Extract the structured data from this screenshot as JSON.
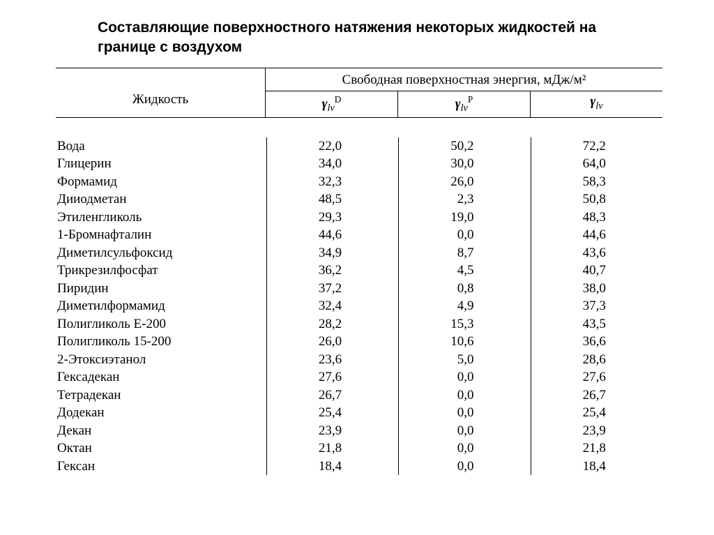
{
  "title": "Составляющие поверхностного натяжения некоторых жидкостей на границе с воздухом",
  "header": {
    "liquid_label": "Жидкость",
    "energy_label": "Свободная поверхностная энергия, мДж/м²",
    "col_gamma_d": "γ_lv^D",
    "col_gamma_p": "γ_lv^P",
    "col_gamma": "γ_lv"
  },
  "table": {
    "type": "table",
    "columns": [
      "Жидкость",
      "γ_lv^D",
      "γ_lv^P",
      "γ_lv"
    ],
    "col_align": [
      "left",
      "right",
      "right",
      "right"
    ],
    "font_family": "Times New Roman",
    "body_fontsize": 19,
    "title_fontsize": 21,
    "text_color": "#000000",
    "rule_color": "#000000",
    "background_color": "#ffffff",
    "rule_width": 1.5,
    "rows": [
      {
        "name": "Вода",
        "d": "22,0",
        "p": "50,2",
        "t": "72,2"
      },
      {
        "name": "Глицерин",
        "d": "34,0",
        "p": "30,0",
        "t": "64,0"
      },
      {
        "name": "Формамид",
        "d": "32,3",
        "p": "26,0",
        "t": "58,3"
      },
      {
        "name": "Дииодметан",
        "d": "48,5",
        "p": "2,3",
        "t": "50,8"
      },
      {
        "name": "Этиленгликоль",
        "d": "29,3",
        "p": "19,0",
        "t": "48,3"
      },
      {
        "name": "1-Бромнафталин",
        "d": "44,6",
        "p": "0,0",
        "t": "44,6"
      },
      {
        "name": "Диметилсульфоксид",
        "d": "34,9",
        "p": "8,7",
        "t": "43,6"
      },
      {
        "name": "Трикрезилфосфат",
        "d": "36,2",
        "p": "4,5",
        "t": "40,7"
      },
      {
        "name": "Пиридин",
        "d": "37,2",
        "p": "0,8",
        "t": "38,0"
      },
      {
        "name": "Диметилформамид",
        "d": "32,4",
        "p": "4,9",
        "t": "37,3"
      },
      {
        "name": "Полигликоль Е-200",
        "d": "28,2",
        "p": "15,3",
        "t": "43,5"
      },
      {
        "name": "Полигликоль 15-200",
        "d": "26,0",
        "p": "10,6",
        "t": "36,6"
      },
      {
        "name": "2-Этоксиэтанол",
        "d": "23,6",
        "p": "5,0",
        "t": "28,6"
      },
      {
        "name": "Гексадекан",
        "d": "27,6",
        "p": "0,0",
        "t": "27,6"
      },
      {
        "name": "Тетрадекан",
        "d": "26,7",
        "p": "0,0",
        "t": "26,7"
      },
      {
        "name": "Додекан",
        "d": "25,4",
        "p": "0,0",
        "t": "25,4"
      },
      {
        "name": "Декан",
        "d": "23,9",
        "p": "0,0",
        "t": "23,9"
      },
      {
        "name": "Октан",
        "d": "21,8",
        "p": "0,0",
        "t": "21,8"
      },
      {
        "name": "Гексан",
        "d": "18,4",
        "p": "0,0",
        "t": "18,4"
      }
    ]
  }
}
